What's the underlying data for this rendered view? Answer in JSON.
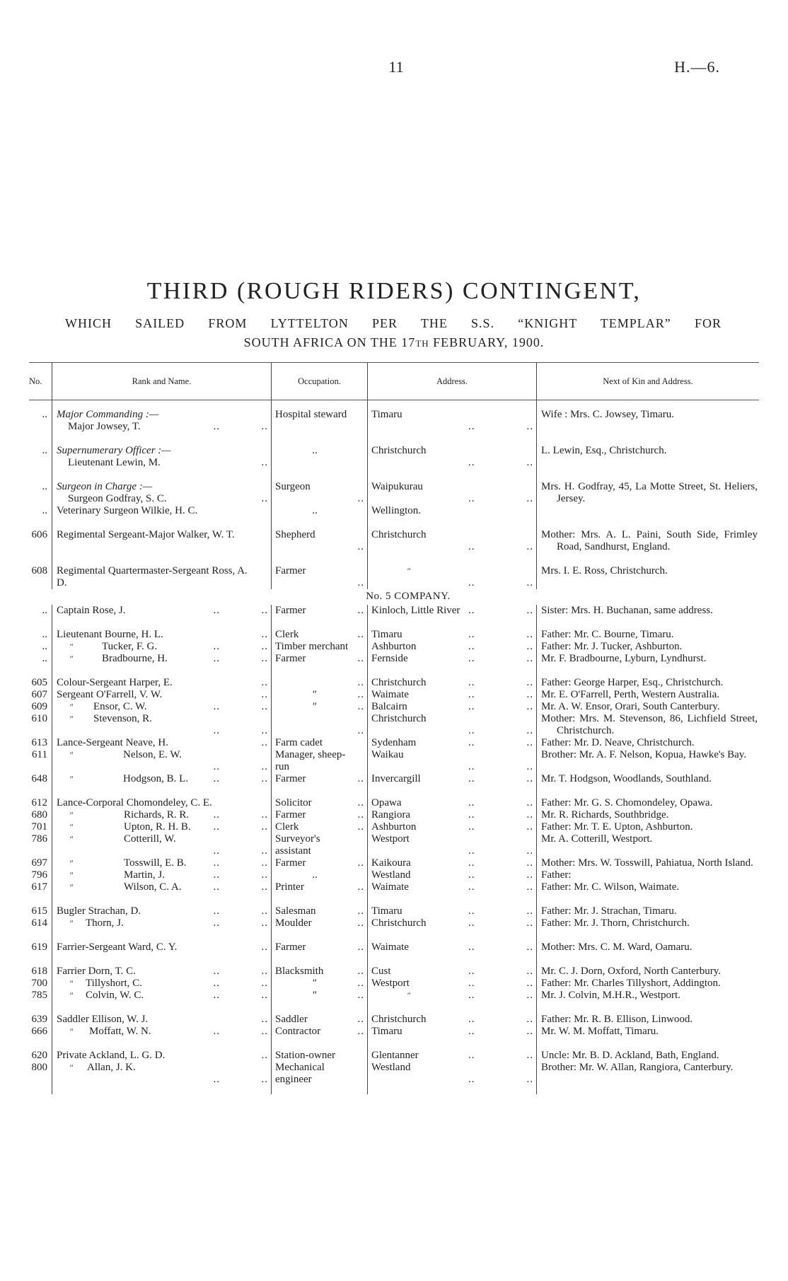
{
  "page": {
    "number": "11",
    "reference": "H.—6."
  },
  "title": "THIRD (ROUGH RIDERS) CONTINGENT,",
  "subtitle_line1": "WHICH SAILED FROM LYTTELTON PER THE S.S. “KNIGHT TEMPLAR” FOR",
  "subtitle_line2_a": "SOUTH AFRICA ON THE 17",
  "subtitle_line2_sup": "TH",
  "subtitle_line2_b": " FEBRUARY, 1900.",
  "headers": {
    "no": "No.",
    "rank": "Rank and Name.",
    "occupation": "Occupation.",
    "address": "Address.",
    "kin": "Next of Kin and Address."
  },
  "sections": [
    {
      "heading": "",
      "groups": [
        [
          {
            "no": "..",
            "label": "Major Commanding :—",
            "rank": "Major",
            "name": "Jowsey, T.",
            "occ": "Hospital steward",
            "addr": "Timaru",
            "kin": "Wife : Mrs. C. Jowsey, Timaru."
          }
        ],
        [
          {
            "no": "..",
            "label": "Supernumerary Officer :—",
            "rank": "Lieutenant",
            "name": "Lewin, M.",
            "occ": "..",
            "addr": "Christchurch",
            "kin": "L. Lewin, Esq., Christchurch."
          }
        ],
        [
          {
            "no": "..",
            "label": "Surgeon in Charge :—",
            "rank": "Surgeon",
            "name": "Godfray, S. C.",
            "occ": "Surgeon",
            "addr": "Waipukurau",
            "kin": "Mrs. H. Godfray, 45, La Motte Street, St. Heliers, Jersey."
          },
          {
            "no": "..",
            "rank": "Veterinary Surgeon",
            "name": "Wilkie, H. C.",
            "occ": "..",
            "addr": "Wellington.",
            "kin": ""
          }
        ],
        [
          {
            "no": "606",
            "rank": "Regimental Sergeant-Major",
            "name": "Walker, W. T.",
            "occ": "Shepherd",
            "addr": "Christchurch",
            "kin": "Mother: Mrs. A. L. Paini, South Side, Frimley Road, Sandhurst, England."
          }
        ],
        [
          {
            "no": "608",
            "rank": "Regimental Quartermaster-Sergeant",
            "name": "Ross, A. D.",
            "occ": "Farmer",
            "addr": "″",
            "kin": "Mrs. I. E. Ross, Christchurch."
          }
        ]
      ]
    },
    {
      "heading": "No. 5 COMPANY.",
      "groups": [
        [
          {
            "no": "..",
            "rank": "Captain",
            "name": "Rose, J.",
            "occ": "Farmer",
            "addr": "Kinloch, Little River",
            "kin": "Sister: Mrs. H. Buchanan, same address."
          }
        ],
        [
          {
            "no": "..",
            "rank": "Lieutenant",
            "name": "Bourne, H. L.",
            "occ": "Clerk",
            "addr": "Timaru",
            "kin": "Father: Mr. C. Bourne, Timaru."
          },
          {
            "no": "..",
            "rank": "″",
            "name": "Tucker, F. G.",
            "occ": "Timber merchant",
            "addr": "Ashburton",
            "kin": "Father: Mr. J. Tucker, Ashburton."
          },
          {
            "no": "..",
            "rank": "″",
            "name": "Bradbourne, H.",
            "occ": "Farmer",
            "addr": "Fernside",
            "kin": "Mr. F. Bradbourne, Lyburn, Lyndhurst."
          }
        ],
        [
          {
            "no": "605",
            "rank": "Colour-Sergeant",
            "name": "Harper, E.",
            "occ": "",
            "addr": "Christchurch",
            "kin": "Father: George Harper, Esq., Christchurch."
          },
          {
            "no": "607",
            "rank": "Sergeant",
            "name": "O'Farrell, V. W.",
            "occ": "″",
            "addr": "Waimate",
            "kin": "Mr. E. O'Farrell, Perth, Western Australia."
          },
          {
            "no": "609",
            "rank": "″",
            "name": "Ensor, C. W.",
            "occ": "″",
            "addr": "Balcairn",
            "kin": "Mr. A. W. Ensor, Orari, South Canterbury."
          },
          {
            "no": "610",
            "rank": "″",
            "name": "Stevenson, R.",
            "occ": "",
            "addr": "Christchurch",
            "kin": "Mother: Mrs. M. Stevenson, 86, Lichfield Street, Christchurch."
          },
          {
            "no": "613",
            "rank": "Lance-Sergeant",
            "name": "Neave, H.",
            "occ": "Farm cadet",
            "addr": "Sydenham",
            "kin": "Father: Mr. D. Neave, Christchurch."
          },
          {
            "no": "611",
            "rank": "″",
            "name": "Nelson, E. W.",
            "occ": "Manager, sheep-run",
            "addr": "Waikau",
            "kin": "Brother: Mr. A. F. Nelson, Kopua, Hawke's Bay."
          },
          {
            "no": "648",
            "rank": "″",
            "name": "Hodgson, B. L.",
            "occ": "Farmer",
            "addr": "Invercargill",
            "kin": "Mr. T. Hodgson, Woodlands, Southland."
          }
        ],
        [
          {
            "no": "612",
            "rank": "Lance-Corporal",
            "name": "Chomondeley, C. E.",
            "occ": "Solicitor",
            "addr": "Opawa",
            "kin": "Father: Mr. G. S. Chomondeley, Opawa."
          },
          {
            "no": "680",
            "rank": "″",
            "name": "Richards, R. R.",
            "occ": "Farmer",
            "addr": "Rangiora",
            "kin": "Mr. R. Richards, Southbridge."
          },
          {
            "no": "701",
            "rank": "″",
            "name": "Upton, R. H. B.",
            "occ": "Clerk",
            "addr": "Ashburton",
            "kin": "Father: Mr. T. E. Upton, Ashburton."
          },
          {
            "no": "786",
            "rank": "″",
            "name": "Cotterill, W.",
            "occ": "Surveyor's assistant",
            "addr": "Westport",
            "kin": "Mr. A. Cotterill, Westport."
          },
          {
            "no": "697",
            "rank": "″",
            "name": "Tosswill, E. B.",
            "occ": "Farmer",
            "addr": "Kaikoura",
            "kin": "Mother: Mrs. W. Tosswill, Pahiatua, North Island."
          },
          {
            "no": "796",
            "rank": "″",
            "name": "Martin, J.",
            "occ": "..",
            "addr": "Westland",
            "kin": "Father:"
          },
          {
            "no": "617",
            "rank": "″",
            "name": "Wilson, C. A.",
            "occ": "Printer",
            "addr": "Waimate",
            "kin": "Father: Mr. C. Wilson, Waimate."
          }
        ],
        [
          {
            "no": "615",
            "rank": "Bugler",
            "name": "Strachan, D.",
            "occ": "Salesman",
            "addr": "Timaru",
            "kin": "Father: Mr. J. Strachan, Timaru."
          },
          {
            "no": "614",
            "rank": "″",
            "name": "Thorn, J.",
            "occ": "Moulder",
            "addr": "Christchurch",
            "kin": "Father: Mr. J. Thorn, Christchurch."
          }
        ],
        [
          {
            "no": "619",
            "rank": "Farrier-Sergeant",
            "name": "Ward, C. Y.",
            "occ": "Farmer",
            "addr": "Waimate",
            "kin": "Mother: Mrs. C. M. Ward, Oamaru."
          }
        ],
        [
          {
            "no": "618",
            "rank": "Farrier",
            "name": "Dorn, T. C.",
            "occ": "Blacksmith",
            "addr": "Cust",
            "kin": "Mr. C. J. Dorn, Oxford, North Canterbury."
          },
          {
            "no": "700",
            "rank": "″",
            "name": "Tillyshort, C.",
            "occ": "″",
            "addr": "Westport",
            "kin": "Father: Mr. Charles Tillyshort, Addington."
          },
          {
            "no": "785",
            "rank": "″",
            "name": "Colvin, W. C.",
            "occ": "″",
            "addr": "″",
            "kin": "Mr. J. Colvin, M.H.R., Westport."
          }
        ],
        [
          {
            "no": "639",
            "rank": "Saddler",
            "name": "Ellison, W. J.",
            "occ": "Saddler",
            "addr": "Christchurch",
            "kin": "Father: Mr. R. B. Ellison, Linwood."
          },
          {
            "no": "666",
            "rank": "″",
            "name": "Moffatt, W. N.",
            "occ": "Contractor",
            "addr": "Timaru",
            "kin": "Mr. W. M. Moffatt, Timaru."
          }
        ],
        [
          {
            "no": "620",
            "rank": "Private",
            "name": "Ackland, L. G. D.",
            "occ": "Station-owner",
            "addr": "Glentanner",
            "kin": "Uncle: Mr. B. D. Ackland, Bath, England."
          },
          {
            "no": "800",
            "rank": "″",
            "name": "Allan, J. K.",
            "occ": "Mechanical engineer",
            "addr": "Westland",
            "kin": "Brother: Mr. W. Allan, Rangiora, Canterbury."
          }
        ]
      ]
    }
  ]
}
